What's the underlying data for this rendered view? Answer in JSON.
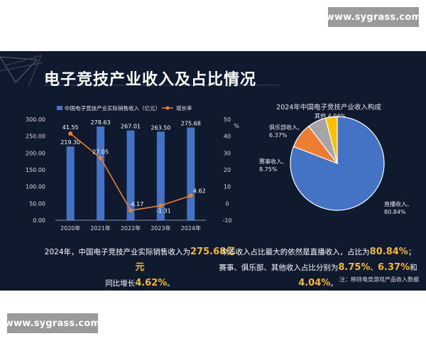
{
  "watermark": "www.sygrass.com",
  "title": "电子竞技产业收入及占比情况",
  "colors": {
    "background": "#101a2e",
    "bar": "#4472c4",
    "line": "#ed7d31",
    "highlight": "#f5b82e",
    "pie": [
      "#4472c4",
      "#ed7d31",
      "#a5a5a5",
      "#ffc000"
    ]
  },
  "chart_data": [
    {
      "type": "bar",
      "categories": [
        "2020年",
        "2021年",
        "2022年",
        "2023年",
        "2024年"
      ],
      "series": [
        {
          "name": "中国电子竞技产业实际销售收入（亿元）",
          "type": "bar",
          "axis": "left",
          "values": [
            219.3,
            278.63,
            267.01,
            263.5,
            275.68
          ],
          "labels": [
            "219.30",
            "278.63",
            "267.01",
            "263.50",
            "275.68"
          ]
        },
        {
          "name": "增长率",
          "type": "line",
          "axis": "right",
          "values": [
            41.55,
            27.05,
            -4.17,
            -1.31,
            4.62
          ],
          "labels": [
            "41.55",
            "27.05",
            "-4.17",
            "-1.31",
            "4.62"
          ]
        }
      ],
      "y_left": {
        "ylim": [
          0,
          300
        ],
        "ticks": [
          "0.00",
          "50.00",
          "100.00",
          "150.00",
          "200.00",
          "250.00",
          "300.00"
        ]
      },
      "y_right": {
        "ylim": [
          -10,
          50
        ],
        "ticks": [
          "-10",
          "0",
          "10",
          "20",
          "30",
          "40",
          "50"
        ],
        "unit": "%"
      },
      "legend_position": "top"
    },
    {
      "type": "pie",
      "title": "2024年中国电子竞技产业收入构成",
      "slices": [
        {
          "name": "直播收入",
          "value": 80.84,
          "label": "80.84%"
        },
        {
          "name": "赛事收入",
          "value": 8.75,
          "label": "8.75%"
        },
        {
          "name": "俱乐部收入",
          "value": 6.37,
          "label": "6.37%"
        },
        {
          "name": "其他",
          "value": 4.04,
          "label": "4.04%"
        }
      ]
    }
  ],
  "captions": {
    "left_line1_pre": "2024年，中国电子竞技产业实际销售收入为",
    "left_line1_hl": "275.68亿元",
    "left_line2_pre": "同比增长",
    "left_line2_hl": "4.62%",
    "left_line2_post": "。",
    "right_line1_pre": "今年收入占比最大的依然是直播收入，占比为",
    "right_line1_hl": "80.84%",
    "right_line1_post": "；",
    "right_line2_pre": "赛事、俱乐部、其他收入占比分别为",
    "right_line2_hl1": "8.75%",
    "right_line2_sep": "、",
    "right_line2_hl2": "6.37%",
    "right_line2_and": "和",
    "right_line2_hl3": "4.04%",
    "right_line2_post": "。"
  },
  "source": "注：移除电竞游戏产品收入数据"
}
